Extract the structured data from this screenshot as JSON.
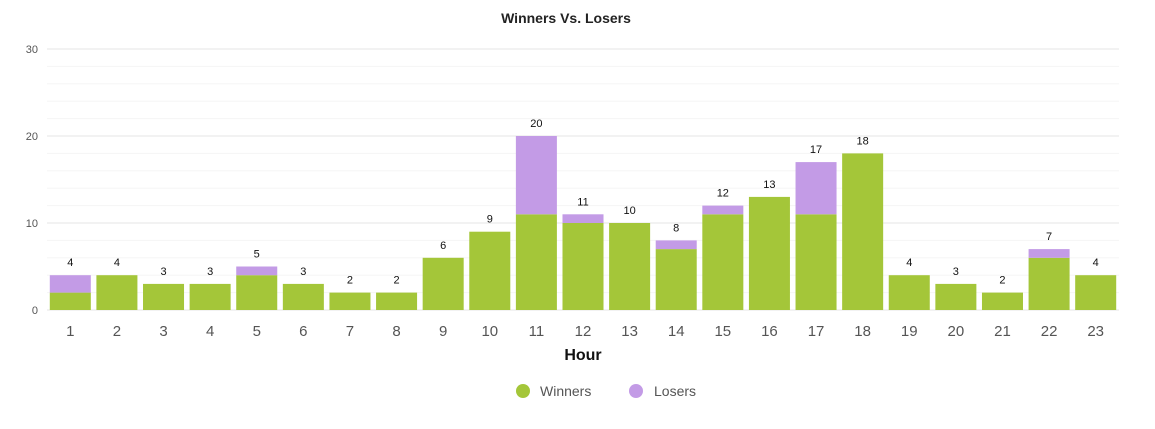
{
  "chart_data": {
    "type": "bar",
    "stacked": true,
    "title": "Winners Vs. Losers",
    "xlabel": "Hour",
    "ylabel": "",
    "ylim": [
      0,
      30
    ],
    "yticks": [
      0,
      10,
      20,
      30
    ],
    "grid": true,
    "legend_position": "bottom-center",
    "categories": [
      "1",
      "2",
      "3",
      "4",
      "5",
      "6",
      "7",
      "8",
      "9",
      "10",
      "11",
      "12",
      "13",
      "14",
      "15",
      "16",
      "17",
      "18",
      "19",
      "20",
      "21",
      "22",
      "23"
    ],
    "series": [
      {
        "name": "Winners",
        "color": "#a4c639",
        "values": [
          2,
          4,
          3,
          3,
          4,
          3,
          2,
          2,
          6,
          9,
          11,
          10,
          10,
          7,
          11,
          13,
          11,
          18,
          4,
          3,
          2,
          6,
          4
        ]
      },
      {
        "name": "Losers",
        "color": "#c39be6",
        "values": [
          2,
          0,
          0,
          0,
          1,
          0,
          0,
          0,
          0,
          0,
          9,
          1,
          0,
          1,
          1,
          0,
          6,
          0,
          0,
          0,
          0,
          1,
          0
        ]
      }
    ],
    "totals": [
      4,
      4,
      3,
      3,
      5,
      3,
      2,
      2,
      6,
      9,
      20,
      11,
      10,
      8,
      12,
      13,
      17,
      18,
      4,
      3,
      2,
      7,
      4
    ]
  }
}
